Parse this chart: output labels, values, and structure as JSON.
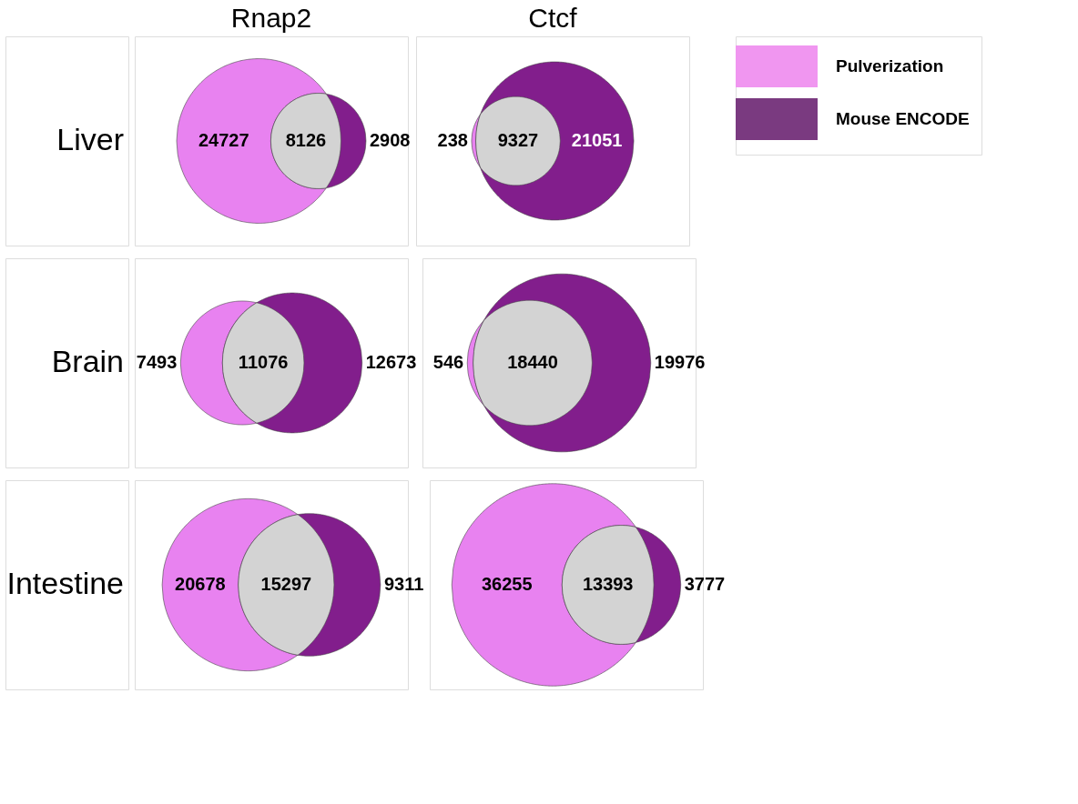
{
  "chart_data": [
    {
      "type": "other",
      "title": "Rnap2",
      "ylabel": "Liver",
      "data_labels": true,
      "categories": [
        null,
        null,
        null
      ],
      "values": [
        24727,
        8126,
        2908
      ],
      "colors": [
        "#e882f0",
        "#d3d3d3",
        "#821e8c"
      ]
    },
    {
      "type": "other",
      "title": "Ctcf",
      "data_labels": true,
      "categories": [
        null,
        null,
        null
      ],
      "values": [
        238,
        9327,
        21051
      ],
      "colors": [
        "#e882f0",
        "#d3d3d3",
        "#821e8c"
      ]
    },
    {
      "type": "other",
      "ylabel": "Brain",
      "data_labels": true,
      "categories": [
        null,
        null,
        null
      ],
      "values": [
        7493,
        11076,
        12673
      ],
      "colors": [
        "#e882f0",
        "#d3d3d3",
        "#821e8c"
      ]
    },
    {
      "type": "other",
      "data_labels": true,
      "categories": [
        null,
        null,
        null
      ],
      "values": [
        546,
        18440,
        19976
      ],
      "colors": [
        "#e882f0",
        "#d3d3d3",
        "#821e8c"
      ]
    },
    {
      "type": "other",
      "ylabel": "Intestine",
      "data_labels": true,
      "categories": [
        null,
        null,
        null
      ],
      "values": [
        20678,
        15297,
        9311
      ],
      "colors": [
        "#e882f0",
        "#d3d3d3",
        "#821e8c"
      ]
    },
    {
      "type": "other",
      "data_labels": true,
      "categories": [
        null,
        null,
        null
      ],
      "values": [
        36255,
        13393,
        3777
      ],
      "colors": [
        "#e882f0",
        "#d3d3d3",
        "#821e8c"
      ]
    },
    {
      "type": "other",
      "categories": [
        "Pulverization",
        "Mouse ENCODE"
      ],
      "colors": [
        "#f096f0",
        "#7a3a80"
      ]
    }
  ]
}
